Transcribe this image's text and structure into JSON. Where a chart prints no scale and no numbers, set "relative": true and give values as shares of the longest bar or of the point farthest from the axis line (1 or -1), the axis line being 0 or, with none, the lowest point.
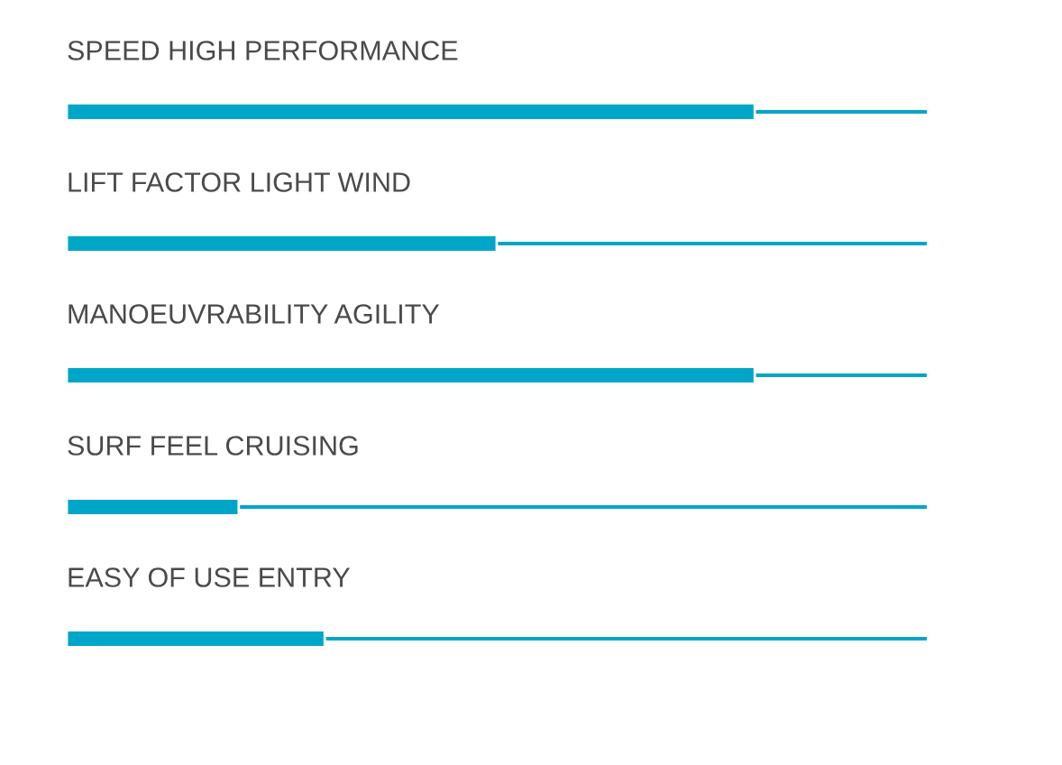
{
  "chart_data": {
    "type": "bar",
    "orientation": "horizontal",
    "relative": true,
    "categories": [
      "SPEED HIGH PERFORMANCE",
      "LIFT FACTOR LIGHT WIND",
      "MANOEUVRABILITY AGILITY",
      "SURF FEEL CRUISING",
      "EASY OF USE ENTRY"
    ],
    "values": [
      1,
      0.625,
      1,
      0.25,
      0.375
    ],
    "color": "#00a6c7",
    "legend": false
  }
}
